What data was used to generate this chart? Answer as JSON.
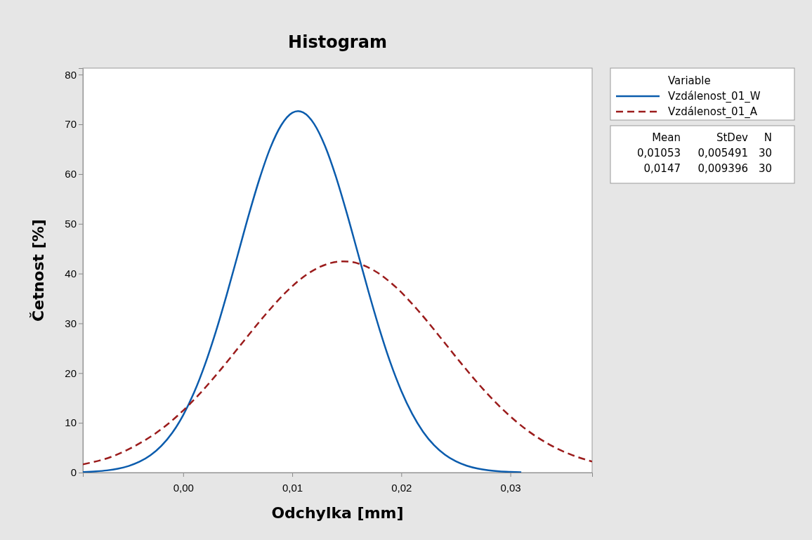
{
  "chart_data": {
    "type": "line",
    "title": "Histogram",
    "xlabel": "Odchylka [mm]",
    "ylabel": "Četnost [%]",
    "legend_title": "Variable",
    "legend": "right",
    "grid": false,
    "xlim": [
      -0.0092,
      0.0375
    ],
    "xticks": [
      {
        "value": 0,
        "label": "0,00"
      },
      {
        "value": 0.01,
        "label": "0,01"
      },
      {
        "value": 0.02,
        "label": "0,02"
      },
      {
        "value": 0.03,
        "label": "0,03"
      }
    ],
    "ylim": [
      0,
      81.3
    ],
    "yticks": [
      0,
      10,
      20,
      30,
      40,
      50,
      60,
      70,
      80
    ],
    "series": [
      {
        "name": "Vzdálenost_01_W",
        "color": "#0b5cad",
        "line_style": "solid",
        "x": [
          -0.0092,
          -0.008,
          -0.007,
          -0.006,
          -0.005,
          -0.004,
          -0.003,
          -0.002,
          -0.001,
          0,
          0.001,
          0.002,
          0.003,
          0.004,
          0.005,
          0.006,
          0.007,
          0.008,
          0.009,
          0.01,
          0.01053,
          0.011,
          0.012,
          0.013,
          0.014,
          0.015,
          0.016,
          0.017,
          0.018,
          0.019,
          0.02,
          0.021,
          0.022,
          0.023,
          0.024,
          0.025,
          0.026,
          0.027,
          0.028,
          0.029,
          0.03,
          0.031
        ],
        "values": [
          0.11,
          0.24,
          0.44,
          0.78,
          1.33,
          2.19,
          3.49,
          5.38,
          8.01,
          11.55,
          16.11,
          21.75,
          28.38,
          35.83,
          43.76,
          51.71,
          59.07,
          65.33,
          69.87,
          72.32,
          72.65,
          72.38,
          70.09,
          65.66,
          59.5,
          52.17,
          44.25,
          36.31,
          28.82,
          22.1,
          16.42,
          11.8,
          8.19,
          5.51,
          3.59,
          2.26,
          1.37,
          0.81,
          0.46,
          0.25,
          0.14,
          0.07
        ]
      },
      {
        "name": "Vzdálenost_01_A",
        "color": "#9b1c1c",
        "line_style": "dashed",
        "x": [
          -0.0092,
          -0.0065,
          -0.0045,
          -0.0025,
          -0.0005,
          0.0015,
          0.0035,
          0.0055,
          0.0075,
          0.0095,
          0.0115,
          0.0135,
          0.0147,
          0.0155,
          0.0175,
          0.0195,
          0.0215,
          0.0235,
          0.0255,
          0.0275,
          0.0295,
          0.0315,
          0.0335,
          0.0354,
          0.0375
        ],
        "values": [
          1.67,
          3.24,
          5.27,
          7.94,
          11.47,
          15.82,
          20.87,
          26.3,
          31.66,
          36.43,
          40.07,
          42.11,
          42.46,
          42.31,
          40.62,
          37.27,
          32.68,
          27.39,
          21.93,
          16.78,
          12.29,
          8.58,
          5.74,
          3.75,
          2.23
        ]
      }
    ],
    "annotations": [
      "Mean",
      "StDev",
      "N",
      "0,01053",
      "0,005491",
      "30",
      "0,0147",
      "0,009396",
      "30"
    ]
  }
}
